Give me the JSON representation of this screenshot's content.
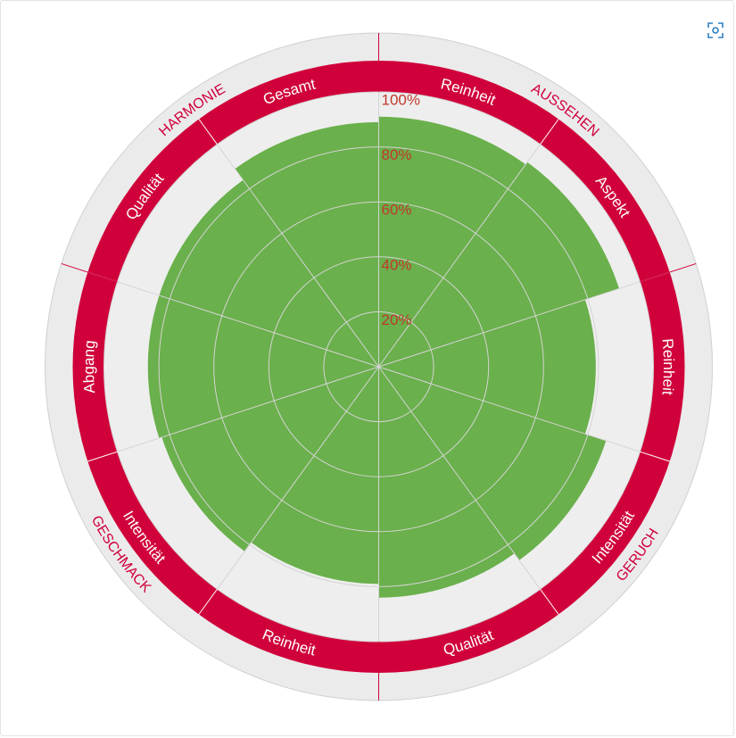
{
  "chart_data": {
    "type": "polar-bar",
    "radial_ticks": [
      "20%",
      "40%",
      "60%",
      "80%",
      "100%"
    ],
    "radial_max": 100,
    "categories": [
      {
        "label": "Reinheit",
        "group": "AUSSEHEN",
        "value": 91
      },
      {
        "label": "Aspekt",
        "group": "AUSSEHEN",
        "value": 92
      },
      {
        "label": "Reinheit",
        "group": "GERUCH",
        "value": 79
      },
      {
        "label": "Intensität",
        "group": "GERUCH",
        "value": 87
      },
      {
        "label": "Qualität",
        "group": "GERUCH",
        "value": 84
      },
      {
        "label": "Reinheit",
        "group": "GESCHMACK",
        "value": 79
      },
      {
        "label": "Intensität",
        "group": "GESCHMACK",
        "value": 83
      },
      {
        "label": "Abgang",
        "group": "GESCHMACK",
        "value": 84
      },
      {
        "label": "Qualität",
        "group": "HARMONIE",
        "value": 84
      },
      {
        "label": "Gesamt",
        "group": "HARMONIE",
        "value": 89
      }
    ],
    "groups": [
      "AUSSEHEN",
      "GERUCH",
      "GESCHMACK",
      "HARMONIE"
    ],
    "colors": {
      "bar": "#6ab04c",
      "band": "#d0003a",
      "outer_ring": "#ebebeb",
      "plot_bg": "#eeeeee",
      "grid": "#d4d4d4",
      "tick_text": "#c0392b",
      "group_text": "#d0003a",
      "category_text": "#ffffff"
    }
  },
  "toolbar": {
    "focus_icon": "focus-icon"
  }
}
